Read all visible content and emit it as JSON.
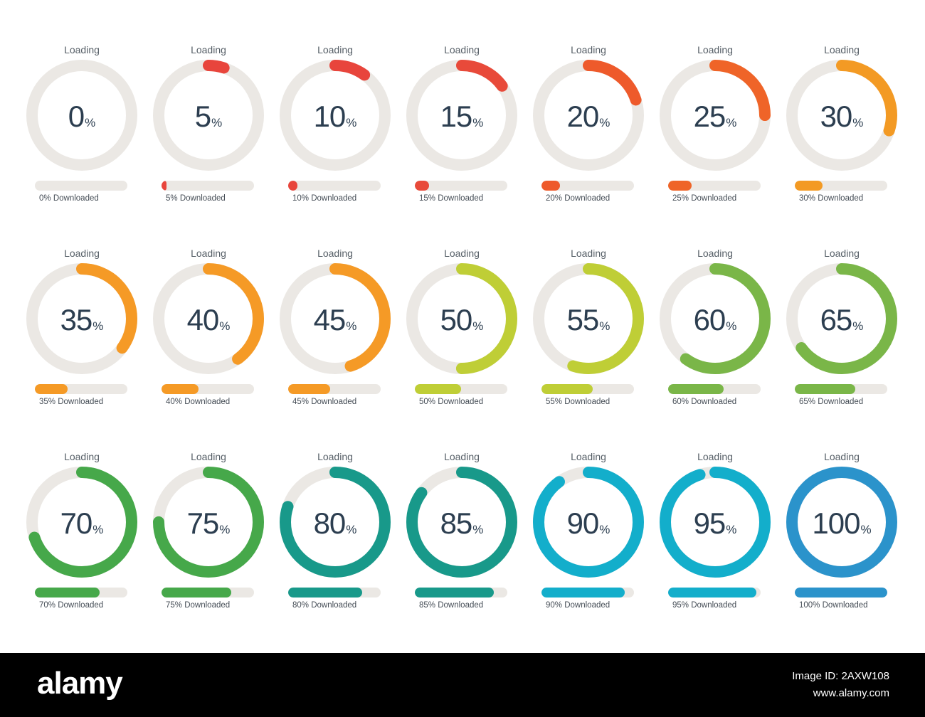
{
  "track_color": "#ebe8e4",
  "value_color": "#2c3e50",
  "widgets": [
    {
      "label": "Loading",
      "value": "0",
      "unit": "%",
      "progress": 0,
      "caption": "0% Downloaded",
      "color": "#e8453c"
    },
    {
      "label": "Loading",
      "value": "5",
      "unit": "%",
      "progress": 0.05,
      "caption": "5% Downloaded",
      "color": "#e8453c"
    },
    {
      "label": "Loading",
      "value": "10",
      "unit": "%",
      "progress": 0.1,
      "caption": "10% Downloaded",
      "color": "#e8453c"
    },
    {
      "label": "Loading",
      "value": "15",
      "unit": "%",
      "progress": 0.15,
      "caption": "15% Downloaded",
      "color": "#e84a3a"
    },
    {
      "label": "Loading",
      "value": "20",
      "unit": "%",
      "progress": 0.2,
      "caption": "20% Downloaded",
      "color": "#ee5a2b"
    },
    {
      "label": "Loading",
      "value": "25",
      "unit": "%",
      "progress": 0.25,
      "caption": "25% Downloaded",
      "color": "#ef6428"
    },
    {
      "label": "Loading",
      "value": "30",
      "unit": "%",
      "progress": 0.3,
      "caption": "30% Downloaded",
      "color": "#f39a24"
    },
    {
      "label": "Loading",
      "value": "35",
      "unit": "%",
      "progress": 0.35,
      "caption": "35% Downloaded",
      "color": "#f59a26"
    },
    {
      "label": "Loading",
      "value": "40",
      "unit": "%",
      "progress": 0.4,
      "caption": "40% Downloaded",
      "color": "#f59a26"
    },
    {
      "label": "Loading",
      "value": "45",
      "unit": "%",
      "progress": 0.45,
      "caption": "45% Downloaded",
      "color": "#f59a26"
    },
    {
      "label": "Loading",
      "value": "50",
      "unit": "%",
      "progress": 0.5,
      "caption": "50% Downloaded",
      "color": "#bfce36"
    },
    {
      "label": "Loading",
      "value": "55",
      "unit": "%",
      "progress": 0.55,
      "caption": "55% Downloaded",
      "color": "#bfce36"
    },
    {
      "label": "Loading",
      "value": "60",
      "unit": "%",
      "progress": 0.6,
      "caption": "60% Downloaded",
      "color": "#7ab648"
    },
    {
      "label": "Loading",
      "value": "65",
      "unit": "%",
      "progress": 0.65,
      "caption": "65% Downloaded",
      "color": "#7ab648"
    },
    {
      "label": "Loading",
      "value": "70",
      "unit": "%",
      "progress": 0.7,
      "caption": "70% Downloaded",
      "color": "#46a84a"
    },
    {
      "label": "Loading",
      "value": "75",
      "unit": "%",
      "progress": 0.75,
      "caption": "75% Downloaded",
      "color": "#46a84a"
    },
    {
      "label": "Loading",
      "value": "80",
      "unit": "%",
      "progress": 0.8,
      "caption": "80% Downloaded",
      "color": "#18998a"
    },
    {
      "label": "Loading",
      "value": "85",
      "unit": "%",
      "progress": 0.85,
      "caption": "85% Downloaded",
      "color": "#18998a"
    },
    {
      "label": "Loading",
      "value": "90",
      "unit": "%",
      "progress": 0.9,
      "caption": "90% Downloaded",
      "color": "#13aecb"
    },
    {
      "label": "Loading",
      "value": "95",
      "unit": "%",
      "progress": 0.95,
      "caption": "95% Downloaded",
      "color": "#13aecb"
    },
    {
      "label": "Loading",
      "value": "100",
      "unit": "%",
      "progress": 1.0,
      "caption": "100% Downloaded",
      "color": "#2b93cb"
    }
  ],
  "footer": {
    "brand": "alamy",
    "image_id": "Image ID: 2AXW108",
    "site_url": "www.alamy.com"
  }
}
